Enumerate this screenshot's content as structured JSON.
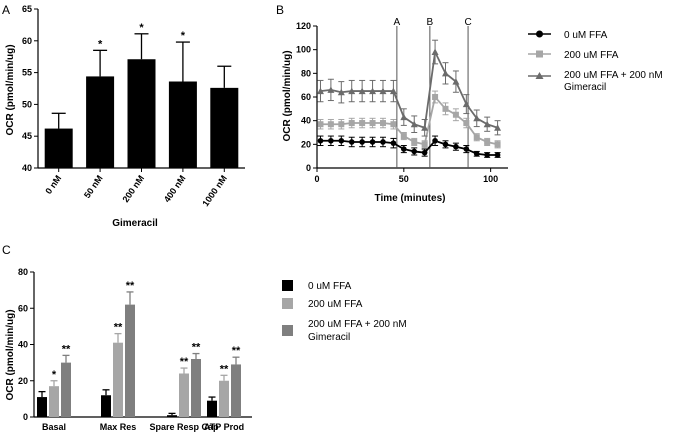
{
  "chart_data": [
    {
      "panel": "A",
      "type": "bar",
      "title": "",
      "xlabel": "Gimeracil",
      "ylabel": "OCR (pmol/min/ug)",
      "ylim": [
        40,
        65
      ],
      "yticks": [
        40,
        45,
        50,
        55,
        60,
        65
      ],
      "categories": [
        "0 nM",
        "50 nM",
        "200 nM",
        "400 nM",
        "1000 nM"
      ],
      "values": [
        46.2,
        54.4,
        57.1,
        53.6,
        52.6
      ],
      "errors": [
        2.4,
        4.1,
        4.0,
        6.2,
        3.4
      ],
      "significance": [
        "",
        "*",
        "*",
        "*",
        ""
      ],
      "colors": {
        "bar": "#000000"
      }
    },
    {
      "panel": "B",
      "type": "line",
      "xlabel": "Time (minutes)",
      "ylabel": "OCR (pmol/min/ug)",
      "xlim": [
        0,
        110
      ],
      "ylim": [
        0,
        120
      ],
      "xticks": [
        0,
        50,
        100
      ],
      "yticks": [
        0,
        20,
        40,
        60,
        80,
        100,
        120
      ],
      "phase_markers": [
        {
          "label": "A",
          "x": 46
        },
        {
          "label": "B",
          "x": 65
        },
        {
          "label": "C",
          "x": 87
        }
      ],
      "x": [
        2,
        8,
        14,
        20,
        26,
        32,
        38,
        44,
        50,
        56,
        62,
        68,
        74,
        80,
        86,
        92,
        98,
        104
      ],
      "series": [
        {
          "name": "0 uM FFA",
          "marker": "circle",
          "color": "#000000",
          "values": [
            23,
            23,
            23,
            22,
            22,
            22,
            22,
            21,
            16,
            14,
            13,
            23,
            20,
            18,
            16,
            12,
            11,
            11
          ],
          "errors": [
            4,
            4,
            4,
            4,
            4,
            4,
            4,
            4,
            3,
            3,
            3,
            4,
            3,
            3,
            3,
            2,
            2,
            2
          ]
        },
        {
          "name": "200 uM FFA",
          "marker": "square",
          "color": "#a6a6a6",
          "values": [
            37,
            37,
            37,
            38,
            38,
            38,
            38,
            37,
            27,
            22,
            20,
            60,
            50,
            45,
            38,
            26,
            22,
            20
          ],
          "errors": [
            4,
            4,
            4,
            4,
            4,
            4,
            4,
            4,
            3,
            3,
            3,
            5,
            5,
            5,
            4,
            3,
            3,
            3
          ]
        },
        {
          "name": "200 uM FFA + 200 nM Gimeracil",
          "marker": "triangle",
          "color": "#6b6b6b",
          "values": [
            65,
            66,
            64,
            65,
            65,
            65,
            65,
            65,
            43,
            37,
            34,
            98,
            80,
            73,
            54,
            42,
            37,
            34
          ],
          "errors": [
            9,
            9,
            9,
            9,
            9,
            9,
            9,
            9,
            7,
            7,
            7,
            10,
            9,
            9,
            8,
            7,
            6,
            6
          ]
        }
      ]
    },
    {
      "panel": "C",
      "type": "bar",
      "xlabel": "",
      "ylabel": "OCR (pmol/min/ug)",
      "ylim": [
        0,
        80
      ],
      "yticks": [
        0,
        20,
        40,
        60,
        80
      ],
      "categories": [
        "Basal",
        "Max Res",
        "Spare Resp Cap",
        "ATP Prod"
      ],
      "series": [
        {
          "name": "0 uM FFA",
          "color": "#000000",
          "values": [
            11,
            12,
            1,
            9
          ],
          "errors": [
            3,
            3,
            1,
            2
          ],
          "significance": [
            "",
            "",
            "",
            ""
          ]
        },
        {
          "name": "200 uM FFA",
          "color": "#a6a6a6",
          "values": [
            17,
            41,
            24,
            20
          ],
          "errors": [
            3,
            5,
            3,
            3
          ],
          "significance": [
            "*",
            "**",
            "**",
            "**"
          ]
        },
        {
          "name": "200 uM FFA + 200 nM Gimeracil",
          "color": "#7f7f7f",
          "values": [
            30,
            62,
            32,
            29
          ],
          "errors": [
            4,
            7,
            3,
            4
          ],
          "significance": [
            "**",
            "**",
            "**",
            "**"
          ]
        }
      ]
    }
  ],
  "labels": {
    "panelA": "A",
    "panelB": "B",
    "panelC": "C",
    "legendB": [
      "0 uM FFA",
      "200 uM FFA",
      "200 uM FFA + 200 nM",
      "Gimeracil"
    ],
    "legendC": [
      "0 uM FFA",
      "200 uM FFA",
      "200 uM FFA + 200 nM",
      "Gimeracil"
    ]
  }
}
